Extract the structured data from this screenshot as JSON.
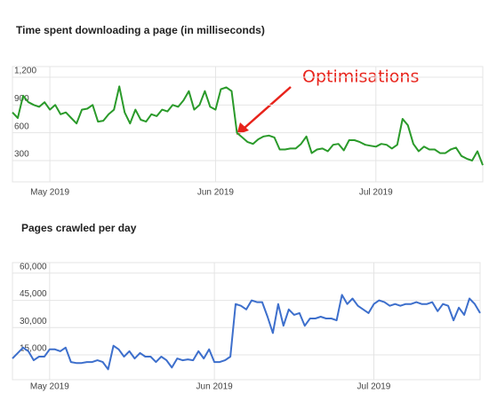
{
  "chart_data": [
    {
      "type": "line",
      "title": "Time spent downloading a page (in milliseconds)",
      "annotation": "Optimisations",
      "color": "#2a9a2a",
      "grid": true,
      "ylim": [
        70,
        1315
      ],
      "yticks": [
        300,
        600,
        900,
        {
          "value": 1200,
          "label": "1,200"
        }
      ],
      "categories": [
        null,
        null,
        null,
        null,
        null,
        null,
        null,
        "May 2019",
        null,
        null,
        null,
        null,
        null,
        null,
        null,
        null,
        null,
        null,
        null,
        null,
        null,
        null,
        null,
        null,
        null,
        null,
        null,
        null,
        null,
        null,
        null,
        null,
        null,
        null,
        null,
        null,
        null,
        null,
        "Jun 2019",
        null,
        null,
        null,
        null,
        null,
        null,
        null,
        null,
        null,
        null,
        null,
        null,
        null,
        null,
        null,
        null,
        null,
        null,
        null,
        null,
        null,
        null,
        null,
        null,
        null,
        null,
        null,
        null,
        null,
        "Jul 2019",
        null,
        null,
        null,
        null,
        null,
        null,
        null,
        null,
        null,
        null,
        null,
        null,
        null,
        null,
        null,
        null,
        null,
        null,
        null,
        null
      ],
      "values": [
        820,
        760,
        1000,
        930,
        900,
        880,
        930,
        850,
        900,
        800,
        820,
        760,
        700,
        850,
        860,
        900,
        720,
        730,
        800,
        850,
        1100,
        820,
        700,
        850,
        740,
        720,
        800,
        780,
        850,
        830,
        900,
        880,
        950,
        1050,
        850,
        900,
        1050,
        880,
        850,
        1070,
        1090,
        1050,
        600,
        550,
        500,
        480,
        530,
        560,
        570,
        550,
        420,
        420,
        430,
        430,
        480,
        560,
        380,
        420,
        430,
        400,
        470,
        480,
        410,
        520,
        520,
        500,
        470,
        460,
        450,
        480,
        470,
        430,
        470,
        750,
        680,
        480,
        400,
        450,
        420,
        420,
        380,
        380,
        420,
        440,
        350,
        320,
        300,
        400,
        250
      ]
    },
    {
      "type": "line",
      "title": "Pages crawled per day",
      "color": "#3d6fcc",
      "grid": true,
      "ylim": [
        1300,
        65800
      ],
      "yticks": [
        {
          "value": 15000,
          "label": "15,000"
        },
        {
          "value": 30000,
          "label": "30,000"
        },
        {
          "value": 45000,
          "label": "45,000"
        },
        {
          "value": 60000,
          "label": "60,000"
        }
      ],
      "categories": [
        null,
        null,
        null,
        null,
        null,
        null,
        null,
        "May 2019",
        null,
        null,
        null,
        null,
        null,
        null,
        null,
        null,
        null,
        null,
        null,
        null,
        null,
        null,
        null,
        null,
        null,
        null,
        null,
        null,
        null,
        null,
        null,
        null,
        null,
        null,
        null,
        null,
        null,
        null,
        "Jun 2019",
        null,
        null,
        null,
        null,
        null,
        null,
        null,
        null,
        null,
        null,
        null,
        null,
        null,
        null,
        null,
        null,
        null,
        null,
        null,
        null,
        null,
        null,
        null,
        null,
        null,
        null,
        null,
        null,
        null,
        "Jul 2019",
        null,
        null,
        null,
        null,
        null,
        null,
        null,
        null,
        null,
        null,
        null,
        null,
        null,
        null,
        null,
        null,
        null,
        null,
        null,
        null
      ],
      "values": [
        13000,
        16000,
        19000,
        17000,
        12000,
        14000,
        14000,
        18000,
        18000,
        17000,
        19000,
        11000,
        10500,
        10500,
        11000,
        11000,
        12000,
        11000,
        7000,
        20000,
        18000,
        14000,
        17000,
        13000,
        16000,
        14000,
        14000,
        11000,
        14000,
        12000,
        8000,
        13000,
        12000,
        12500,
        12000,
        17000,
        13000,
        18000,
        11000,
        11000,
        12000,
        14000,
        43000,
        42000,
        40000,
        45000,
        44000,
        44000,
        36000,
        27000,
        43000,
        31000,
        40000,
        37000,
        38000,
        31000,
        35000,
        35000,
        36000,
        35000,
        35000,
        34000,
        48000,
        43000,
        46000,
        42000,
        40000,
        38000,
        43000,
        45000,
        44000,
        42000,
        43000,
        42000,
        43000,
        43000,
        44000,
        43000,
        43000,
        44000,
        39000,
        43000,
        42000,
        34000,
        41000,
        37000,
        46000,
        43000,
        38000
      ]
    }
  ]
}
